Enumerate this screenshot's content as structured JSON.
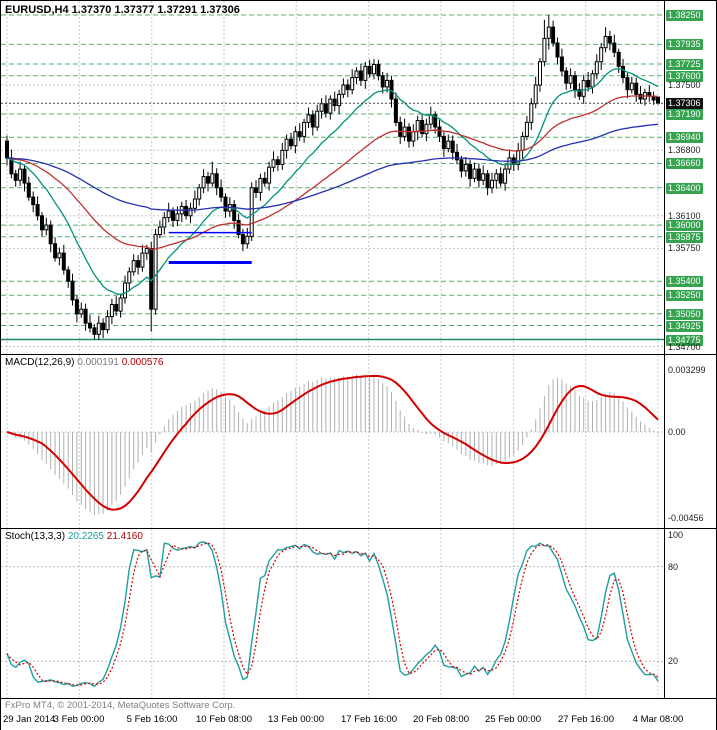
{
  "header": {
    "symbol_period": "EURUSD,H4",
    "open": "1.37370",
    "high": "1.37377",
    "low": "1.37291",
    "close": "1.37306"
  },
  "macd": {
    "label": "MACD(12,26,9)",
    "value_main": "0.000191",
    "value_signal": "0.000576"
  },
  "stoch": {
    "label": "Stoch(13,3,3)",
    "value_main": "20.2265",
    "value_signal": "21.4160"
  },
  "footer": {
    "copyright": "FxPro MT4, © 2001-2014, MetaQuotes Software Corp."
  },
  "colors": {
    "level_green": "#35a34f",
    "level_line": "#4db36a",
    "level_solid": "#1c8a70",
    "ma_fast": "#00947c",
    "ma_mid": "#c03030",
    "ma_slow": "#2432b0",
    "support_blue": "#0000ff",
    "current_price_bg": "#101010",
    "macd_signal": "#d40000",
    "macd_hist": "#b0b0b0",
    "stoch_main": "#1f9e9e",
    "stoch_signal": "#d40000"
  },
  "chart_data": {
    "type": "candlestick",
    "symbol": "EURUSD",
    "timeframe": "H4",
    "bid": "1.37306",
    "price_scale": {
      "min": 1.3462,
      "max": 1.384
    },
    "time_labels": [
      "29 Jan 2014",
      "3 Feb 00:00",
      "5 Feb 16:00",
      "10 Feb 08:00",
      "13 Feb 00:00",
      "17 Feb 16:00",
      "20 Feb 08:00",
      "25 Feb 00:00",
      "27 Feb 16:00",
      "4 Mar 08:00"
    ],
    "price_axis": [
      {
        "text": "1.38250",
        "type": "level"
      },
      {
        "text": "1.37935",
        "type": "level"
      },
      {
        "text": "1.37725",
        "type": "level"
      },
      {
        "text": "1.37600",
        "type": "level"
      },
      {
        "text": "1.37500",
        "type": "grid"
      },
      {
        "text": "1.37306",
        "type": "current"
      },
      {
        "text": "1.37190",
        "type": "level"
      },
      {
        "text": "1.36940",
        "type": "level"
      },
      {
        "text": "1.36800",
        "type": "grid"
      },
      {
        "text": "1.36660",
        "type": "level"
      },
      {
        "text": "1.36400",
        "type": "level"
      },
      {
        "text": "1.36100",
        "type": "grid"
      },
      {
        "text": "1.36000",
        "type": "level"
      },
      {
        "text": "1.35875",
        "type": "level"
      },
      {
        "text": "1.35750",
        "type": "grid"
      },
      {
        "text": "1.35400",
        "type": "level"
      },
      {
        "text": "1.35250",
        "type": "level"
      },
      {
        "text": "1.35050",
        "type": "level"
      },
      {
        "text": "1.34925",
        "type": "level"
      },
      {
        "text": "1.34775",
        "type": "level-solid"
      },
      {
        "text": "1.34700",
        "type": "grid"
      }
    ],
    "macd_axis": [
      {
        "text": "0.003299",
        "value": 0.003299
      },
      {
        "text": "0.00",
        "value": 0
      },
      {
        "text": "-0.00456",
        "value": -0.00456
      }
    ],
    "stoch_axis": [
      {
        "text": "100",
        "value": 100
      },
      {
        "text": "80",
        "value": 80
      },
      {
        "text": "20",
        "value": 20
      }
    ],
    "stoch_levels": [
      80,
      20
    ],
    "indicators": {
      "macd_params": [
        12,
        26,
        9
      ],
      "stoch_params": [
        13,
        3,
        3
      ]
    },
    "moving_averages": [
      {
        "period": 16,
        "color": "#00947c",
        "width": 1.3
      },
      {
        "period": 45,
        "color": "#c03030",
        "width": 1.3
      },
      {
        "period": 110,
        "color": "#2432b0",
        "width": 1.3
      }
    ],
    "support_lines": [
      {
        "price": 1.3592,
        "from": 37,
        "to": 56,
        "width": 1.5
      },
      {
        "price": 1.356,
        "from": 37,
        "to": 56,
        "width": 3
      }
    ],
    "candles": [
      [
        1.369,
        1.3696,
        1.3664,
        1.3672
      ],
      [
        1.3672,
        1.3681,
        1.365,
        1.3655
      ],
      [
        1.3655,
        1.3659,
        1.3641,
        1.3648
      ],
      [
        1.3648,
        1.3668,
        1.3642,
        1.366
      ],
      [
        1.366,
        1.3665,
        1.3636,
        1.3645
      ],
      [
        1.3645,
        1.3652,
        1.3626,
        1.363
      ],
      [
        1.363,
        1.3636,
        1.3614,
        1.3622
      ],
      [
        1.3622,
        1.3631,
        1.3605,
        1.361
      ],
      [
        1.361,
        1.3614,
        1.3588,
        1.3595
      ],
      [
        1.3595,
        1.3608,
        1.3589,
        1.36
      ],
      [
        1.36,
        1.3605,
        1.3571,
        1.358
      ],
      [
        1.358,
        1.3587,
        1.3561,
        1.3565
      ],
      [
        1.3565,
        1.3576,
        1.3557,
        1.357
      ],
      [
        1.357,
        1.3579,
        1.3547,
        1.3552
      ],
      [
        1.3552,
        1.3556,
        1.3533,
        1.354
      ],
      [
        1.354,
        1.3548,
        1.3514,
        1.352
      ],
      [
        1.352,
        1.3525,
        1.3496,
        1.3505
      ],
      [
        1.3505,
        1.3517,
        1.3501,
        1.351
      ],
      [
        1.351,
        1.3516,
        1.3487,
        1.3495
      ],
      [
        1.3495,
        1.3504,
        1.3485,
        1.349
      ],
      [
        1.349,
        1.3494,
        1.3478,
        1.3483
      ],
      [
        1.3483,
        1.3503,
        1.3477,
        1.3495
      ],
      [
        1.3495,
        1.35,
        1.3479,
        1.3488
      ],
      [
        1.3488,
        1.3509,
        1.3484,
        1.3502
      ],
      [
        1.3502,
        1.3521,
        1.3494,
        1.3515
      ],
      [
        1.3515,
        1.3524,
        1.3503,
        1.3508
      ],
      [
        1.3508,
        1.3526,
        1.3501,
        1.3522
      ],
      [
        1.3522,
        1.3546,
        1.3516,
        1.3538
      ],
      [
        1.3538,
        1.3555,
        1.3529,
        1.355
      ],
      [
        1.355,
        1.3569,
        1.3546,
        1.3562
      ],
      [
        1.3562,
        1.3568,
        1.3547,
        1.3555
      ],
      [
        1.3555,
        1.3579,
        1.355,
        1.357
      ],
      [
        1.357,
        1.3579,
        1.3563,
        1.3575
      ],
      [
        1.3575,
        1.3582,
        1.3486,
        1.351
      ],
      [
        1.351,
        1.3596,
        1.3504,
        1.359
      ],
      [
        1.359,
        1.3605,
        1.3586,
        1.3598
      ],
      [
        1.3598,
        1.3614,
        1.359,
        1.3608
      ],
      [
        1.3608,
        1.3624,
        1.3603,
        1.3615
      ],
      [
        1.3615,
        1.3619,
        1.3598,
        1.3605
      ],
      [
        1.3605,
        1.362,
        1.3599,
        1.3612
      ],
      [
        1.3612,
        1.3625,
        1.3603,
        1.362
      ],
      [
        1.362,
        1.3627,
        1.3606,
        1.361
      ],
      [
        1.361,
        1.3624,
        1.3602,
        1.3618
      ],
      [
        1.3618,
        1.3637,
        1.3613,
        1.3628
      ],
      [
        1.3628,
        1.3644,
        1.3621,
        1.364
      ],
      [
        1.364,
        1.366,
        1.3634,
        1.3652
      ],
      [
        1.3652,
        1.3657,
        1.3636,
        1.3645
      ],
      [
        1.3645,
        1.3668,
        1.3641,
        1.3655
      ],
      [
        1.3655,
        1.3661,
        1.3632,
        1.364
      ],
      [
        1.364,
        1.3649,
        1.3625,
        1.363
      ],
      [
        1.363,
        1.3634,
        1.3608,
        1.3615
      ],
      [
        1.3615,
        1.363,
        1.3609,
        1.3622
      ],
      [
        1.3622,
        1.3627,
        1.3596,
        1.3605
      ],
      [
        1.3605,
        1.3612,
        1.3586,
        1.359
      ],
      [
        1.359,
        1.3596,
        1.3572,
        1.358
      ],
      [
        1.358,
        1.3597,
        1.3575,
        1.3588
      ],
      [
        1.3588,
        1.3646,
        1.3583,
        1.364
      ],
      [
        1.364,
        1.3648,
        1.3629,
        1.3635
      ],
      [
        1.3635,
        1.3655,
        1.3626,
        1.365
      ],
      [
        1.365,
        1.3657,
        1.3641,
        1.3645
      ],
      [
        1.3645,
        1.3668,
        1.3637,
        1.3662
      ],
      [
        1.3662,
        1.3679,
        1.3657,
        1.367
      ],
      [
        1.367,
        1.3674,
        1.3658,
        1.3665
      ],
      [
        1.3665,
        1.3688,
        1.3659,
        1.368
      ],
      [
        1.368,
        1.3697,
        1.3671,
        1.3692
      ],
      [
        1.3692,
        1.3699,
        1.3681,
        1.3685
      ],
      [
        1.3685,
        1.3706,
        1.3677,
        1.37
      ],
      [
        1.37,
        1.3709,
        1.369,
        1.3695
      ],
      [
        1.3695,
        1.3714,
        1.3688,
        1.371
      ],
      [
        1.371,
        1.3726,
        1.3704,
        1.3718
      ],
      [
        1.3718,
        1.3723,
        1.3696,
        1.3705
      ],
      [
        1.3705,
        1.3729,
        1.3701,
        1.3722
      ],
      [
        1.3722,
        1.3736,
        1.3714,
        1.373
      ],
      [
        1.373,
        1.3739,
        1.3715,
        1.372
      ],
      [
        1.372,
        1.3739,
        1.3713,
        1.3735
      ],
      [
        1.3735,
        1.3743,
        1.3722,
        1.3728
      ],
      [
        1.3728,
        1.3745,
        1.3719,
        1.374
      ],
      [
        1.374,
        1.3757,
        1.3736,
        1.375
      ],
      [
        1.375,
        1.3756,
        1.3737,
        1.3745
      ],
      [
        1.3745,
        1.3767,
        1.374,
        1.3758
      ],
      [
        1.3758,
        1.3769,
        1.3751,
        1.3765
      ],
      [
        1.3765,
        1.3773,
        1.3749,
        1.3755
      ],
      [
        1.3755,
        1.3775,
        1.3746,
        1.377
      ],
      [
        1.377,
        1.3777,
        1.3758,
        1.3762
      ],
      [
        1.3762,
        1.3778,
        1.3756,
        1.3772
      ],
      [
        1.3772,
        1.3777,
        1.3755,
        1.376
      ],
      [
        1.376,
        1.3764,
        1.3741,
        1.3748
      ],
      [
        1.3748,
        1.3763,
        1.3742,
        1.3755
      ],
      [
        1.3755,
        1.376,
        1.3726,
        1.3735
      ],
      [
        1.3735,
        1.3742,
        1.3706,
        1.371
      ],
      [
        1.371,
        1.3716,
        1.3687,
        1.3695
      ],
      [
        1.3695,
        1.3714,
        1.369,
        1.3705
      ],
      [
        1.3705,
        1.3709,
        1.3683,
        1.369
      ],
      [
        1.369,
        1.3708,
        1.3684,
        1.37
      ],
      [
        1.37,
        1.3717,
        1.3691,
        1.3712
      ],
      [
        1.3712,
        1.3719,
        1.3694,
        1.3698
      ],
      [
        1.3698,
        1.3714,
        1.369,
        1.3708
      ],
      [
        1.3708,
        1.3727,
        1.3703,
        1.3718
      ],
      [
        1.3718,
        1.3722,
        1.3698,
        1.3705
      ],
      [
        1.3705,
        1.3713,
        1.3689,
        1.3695
      ],
      [
        1.3695,
        1.37,
        1.3673,
        1.3682
      ],
      [
        1.3682,
        1.3697,
        1.3678,
        1.369
      ],
      [
        1.369,
        1.3696,
        1.367,
        1.3678
      ],
      [
        1.3678,
        1.3687,
        1.3665,
        1.367
      ],
      [
        1.367,
        1.3674,
        1.3651,
        1.3658
      ],
      [
        1.3658,
        1.3673,
        1.3652,
        1.3665
      ],
      [
        1.3665,
        1.367,
        1.3641,
        1.365
      ],
      [
        1.365,
        1.3667,
        1.3646,
        1.366
      ],
      [
        1.366,
        1.3666,
        1.364,
        1.3648
      ],
      [
        1.3648,
        1.3664,
        1.3643,
        1.3655
      ],
      [
        1.3655,
        1.3659,
        1.3632,
        1.364
      ],
      [
        1.364,
        1.3656,
        1.3634,
        1.3648
      ],
      [
        1.3648,
        1.366,
        1.3639,
        1.3655
      ],
      [
        1.3655,
        1.3662,
        1.3641,
        1.3645
      ],
      [
        1.3645,
        1.3666,
        1.3637,
        1.366
      ],
      [
        1.366,
        1.3681,
        1.3655,
        1.3672
      ],
      [
        1.3672,
        1.3676,
        1.3658,
        1.3665
      ],
      [
        1.3665,
        1.3688,
        1.3659,
        1.368
      ],
      [
        1.368,
        1.37,
        1.3671,
        1.3695
      ],
      [
        1.3695,
        1.3717,
        1.3691,
        1.371
      ],
      [
        1.371,
        1.3736,
        1.3702,
        1.373
      ],
      [
        1.373,
        1.3759,
        1.3725,
        1.375
      ],
      [
        1.375,
        1.3779,
        1.3743,
        1.3775
      ],
      [
        1.3775,
        1.382,
        1.377,
        1.38
      ],
      [
        1.38,
        1.3825,
        1.3788,
        1.3812
      ],
      [
        1.3812,
        1.3819,
        1.3791,
        1.3795
      ],
      [
        1.3795,
        1.3801,
        1.3772,
        1.378
      ],
      [
        1.378,
        1.3789,
        1.376,
        1.3765
      ],
      [
        1.3765,
        1.3769,
        1.3745,
        1.3752
      ],
      [
        1.3752,
        1.3768,
        1.3746,
        1.376
      ],
      [
        1.376,
        1.3765,
        1.3736,
        1.3745
      ],
      [
        1.3745,
        1.3752,
        1.3734,
        1.3738
      ],
      [
        1.3738,
        1.3761,
        1.373,
        1.3755
      ],
      [
        1.3755,
        1.3764,
        1.3743,
        1.3748
      ],
      [
        1.3748,
        1.3766,
        1.3741,
        1.3762
      ],
      [
        1.3762,
        1.3783,
        1.3756,
        1.3775
      ],
      [
        1.3775,
        1.3795,
        1.3766,
        1.379
      ],
      [
        1.379,
        1.3812,
        1.3785,
        1.3802
      ],
      [
        1.3802,
        1.3808,
        1.3787,
        1.3795
      ],
      [
        1.3795,
        1.3804,
        1.378,
        1.3785
      ],
      [
        1.3785,
        1.3789,
        1.3763,
        1.377
      ],
      [
        1.377,
        1.3778,
        1.3752,
        1.3758
      ],
      [
        1.3758,
        1.3763,
        1.3736,
        1.3745
      ],
      [
        1.3745,
        1.3759,
        1.3741,
        1.3752
      ],
      [
        1.3752,
        1.3758,
        1.3732,
        1.374
      ],
      [
        1.374,
        1.3749,
        1.373,
        1.3735
      ],
      [
        1.3735,
        1.3746,
        1.3728,
        1.3742
      ],
      [
        1.3742,
        1.375,
        1.3732,
        1.3738
      ],
      [
        1.3738,
        1.3743,
        1.3729,
        1.3734
      ],
      [
        1.3737,
        1.37377,
        1.37291,
        1.37306
      ]
    ]
  }
}
